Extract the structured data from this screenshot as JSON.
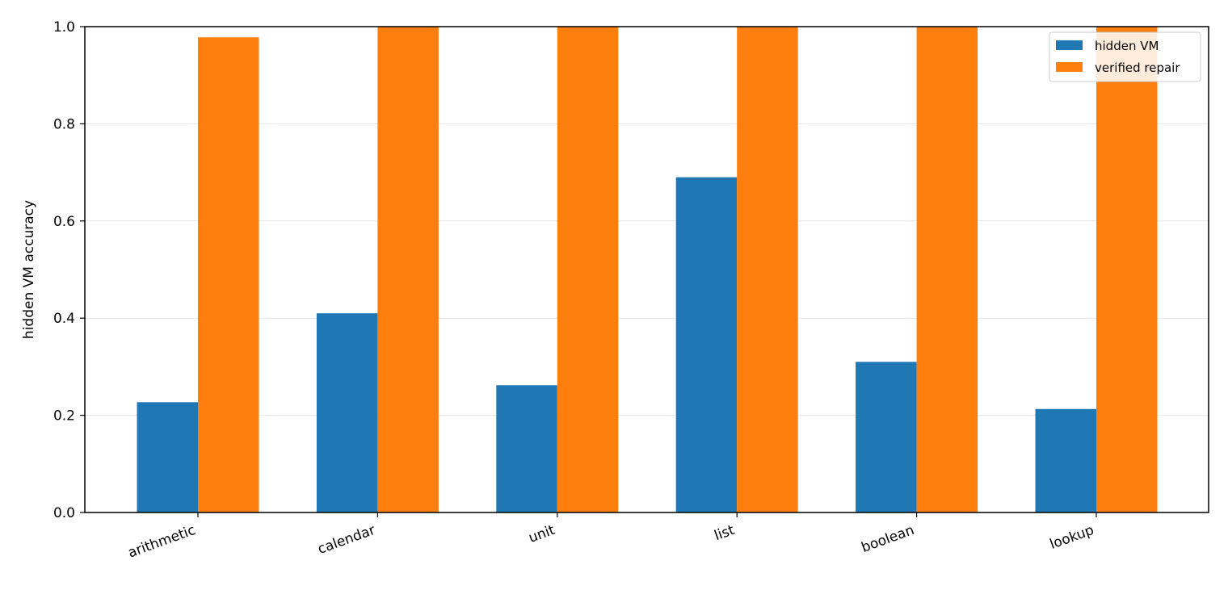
{
  "chart_data": {
    "type": "bar",
    "title": "",
    "xlabel": "",
    "ylabel": "hidden VM accuracy",
    "ylim": [
      0,
      1.0
    ],
    "yticks": [
      "0.0",
      "0.2",
      "0.4",
      "0.6",
      "0.8",
      "1.0"
    ],
    "grid": "y",
    "legend_position": "top-right",
    "categories": [
      "arithmetic",
      "calendar",
      "unit",
      "list",
      "boolean",
      "lookup"
    ],
    "series": [
      {
        "name": "hidden VM",
        "color": "#1f77b4",
        "values": [
          0.227,
          0.41,
          0.262,
          0.69,
          0.31,
          0.213
        ]
      },
      {
        "name": "verified repair",
        "color": "#ff7f0e",
        "values": [
          0.978,
          1.0,
          1.0,
          1.0,
          1.0,
          1.0
        ]
      }
    ]
  }
}
